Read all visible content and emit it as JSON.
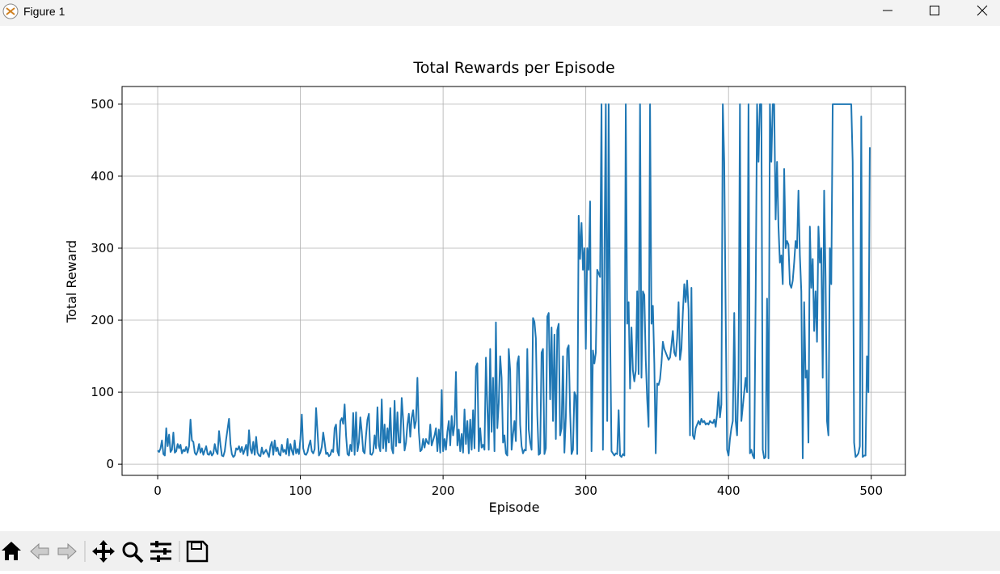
{
  "window": {
    "title": "Figure 1"
  },
  "chart_data": {
    "type": "line",
    "title": "Total Rewards per Episode",
    "x_label": "Episode",
    "y_label": "Total Reward",
    "xlim": [
      -24.95,
      523.95
    ],
    "xticks": [
      0,
      100,
      200,
      300,
      400,
      500
    ],
    "ylim": [
      -15.55,
      524.55
    ],
    "yticks": [
      0,
      100,
      200,
      300,
      400,
      500
    ],
    "grid": true,
    "series": [
      {
        "color": "#1f77b4",
        "values": [
          19,
          17,
          22,
          33,
          14,
          12,
          50,
          25,
          41,
          17,
          20,
          44,
          16,
          18,
          28,
          22,
          27,
          15,
          20,
          18,
          24,
          16,
          25,
          62,
          33,
          31,
          16,
          13,
          18,
          28,
          16,
          22,
          13,
          19,
          25,
          14,
          13,
          18,
          12,
          15,
          28,
          18,
          14,
          46,
          27,
          12,
          11,
          18,
          35,
          49,
          63,
          28,
          14,
          10,
          12,
          22,
          20,
          25,
          17,
          24,
          14,
          20,
          27,
          12,
          47,
          21,
          15,
          31,
          13,
          38,
          16,
          12,
          11,
          23,
          14,
          17,
          20,
          15,
          10,
          25,
          31,
          13,
          33,
          18,
          23,
          14,
          12,
          27,
          17,
          20,
          14,
          35,
          12,
          28,
          19,
          13,
          33,
          15,
          21,
          14,
          35,
          69,
          22,
          14,
          13,
          17,
          26,
          33,
          18,
          15,
          21,
          78,
          45,
          12,
          16,
          24,
          44,
          30,
          14,
          16,
          11,
          13,
          20,
          17,
          50,
          55,
          18,
          12,
          60,
          64,
          56,
          83,
          40,
          14,
          12,
          27,
          18,
          71,
          13,
          72,
          18,
          30,
          65,
          45,
          18,
          15,
          40,
          62,
          70,
          14,
          13,
          17,
          40,
          22,
          79,
          26,
          18,
          90,
          22,
          55,
          18,
          50,
          30,
          78,
          22,
          15,
          88,
          25,
          72,
          30,
          30,
          92,
          62,
          19,
          30,
          55,
          70,
          38,
          65,
          75,
          50,
          60,
          120,
          45,
          18,
          20,
          35,
          23,
          35,
          30,
          28,
          55,
          26,
          33,
          40,
          50,
          18,
          48,
          16,
          103,
          18,
          35,
          20,
          45,
          60,
          26,
          67,
          40,
          55,
          128,
          26,
          48,
          18,
          42,
          16,
          76,
          28,
          60,
          15,
          62,
          20,
          75,
          22,
          135,
          140,
          18,
          50,
          23,
          27,
          20,
          148,
          80,
          20,
          160,
          45,
          120,
          18,
          197,
          50,
          85,
          150,
          120,
          30,
          40,
          15,
          12,
          160,
          130,
          20,
          42,
          60,
          32,
          140,
          150,
          55,
          25,
          15,
          20,
          19,
          160,
          48,
          30,
          20,
          203,
          198,
          175,
          68,
          13,
          15,
          155,
          160,
          14,
          22,
          205,
          210,
          90,
          190,
          60,
          180,
          35,
          186,
          195,
          40,
          50,
          150,
          16,
          65,
          160,
          165,
          72,
          14,
          20,
          100,
          95,
          14,
          345,
          285,
          335,
          270,
          300,
          160,
          300,
          270,
          365,
          18,
          158,
          140,
          155,
          270,
          265,
          260,
          500,
          20,
          280,
          500,
          60,
          500,
          190,
          18,
          15,
          12,
          15,
          14,
          75,
          12,
          10,
          14,
          12,
          500,
          195,
          225,
          105,
          190,
          130,
          115,
          130,
          240,
          125,
          500,
          120,
          240,
          235,
          145,
          90,
          52,
          500,
          195,
          220,
          140,
          15,
          112,
          110,
          118,
          140,
          170,
          160,
          155,
          150,
          145,
          148,
          165,
          185,
          155,
          150,
          175,
          225,
          145,
          160,
          210,
          250,
          225,
          255,
          215,
          40,
          245,
          40,
          35,
          50,
          55,
          60,
          55,
          63,
          58,
          60,
          55,
          57,
          55,
          60,
          58,
          57,
          62,
          52,
          70,
          100,
          65,
          83,
          500,
          420,
          210,
          20,
          12,
          35,
          50,
          60,
          210,
          60,
          40,
          120,
          500,
          60,
          80,
          100,
          120,
          100,
          500,
          15,
          20,
          12,
          8,
          230,
          500,
          420,
          500,
          500,
          20,
          8,
          10,
          230,
          8,
          500,
          420,
          500,
          500,
          340,
          420,
          330,
          280,
          290,
          250,
          410,
          300,
          310,
          305,
          250,
          245,
          255,
          280,
          310,
          300,
          380,
          290,
          240,
          8,
          225,
          120,
          130,
          30,
          330,
          245,
          285,
          185,
          240,
          170,
          330,
          280,
          300,
          120,
          380,
          260,
          60,
          40,
          300,
          250,
          500,
          500,
          500,
          500,
          500,
          500,
          500,
          500,
          500,
          500,
          500,
          500,
          500,
          500,
          420,
          30,
          10,
          12,
          15,
          25,
          483,
          10,
          12,
          12,
          150,
          100,
          440
        ]
      }
    ]
  }
}
